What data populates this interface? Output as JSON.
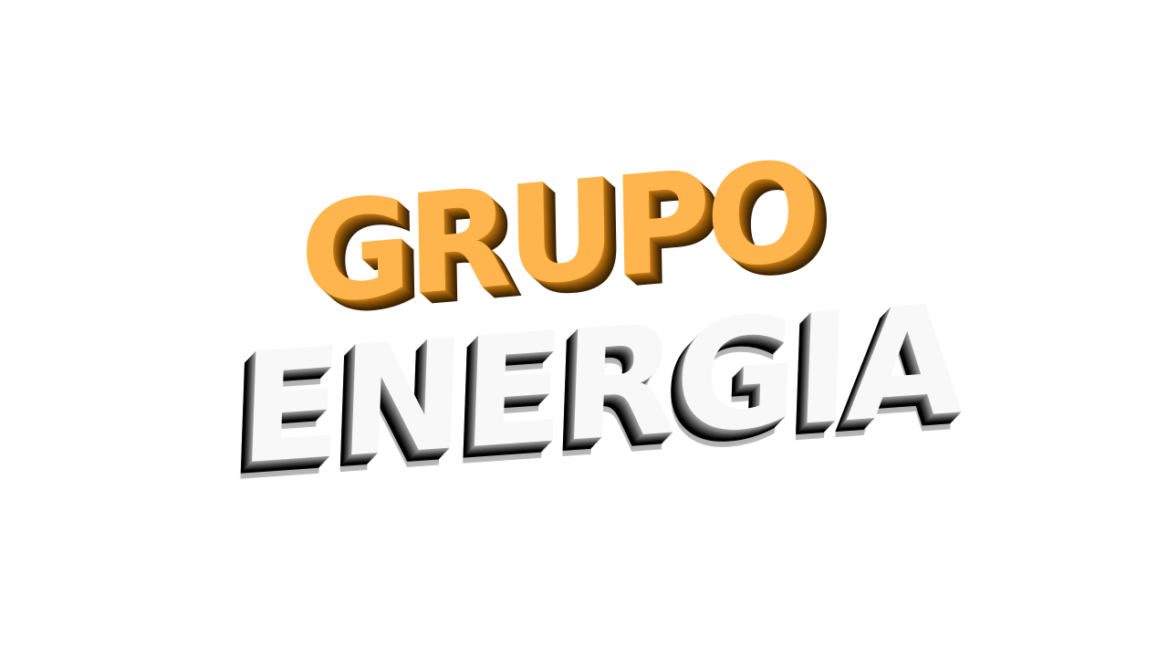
{
  "logo": {
    "line1": "GRUPO",
    "line2": "ENERGIA",
    "colors": {
      "line1_face": "#ffb54d",
      "line1_extrusion": "#6a3f06",
      "line2_face": "#f8f8f8",
      "line2_shadow": "#000000",
      "background": "#ffffff"
    }
  }
}
